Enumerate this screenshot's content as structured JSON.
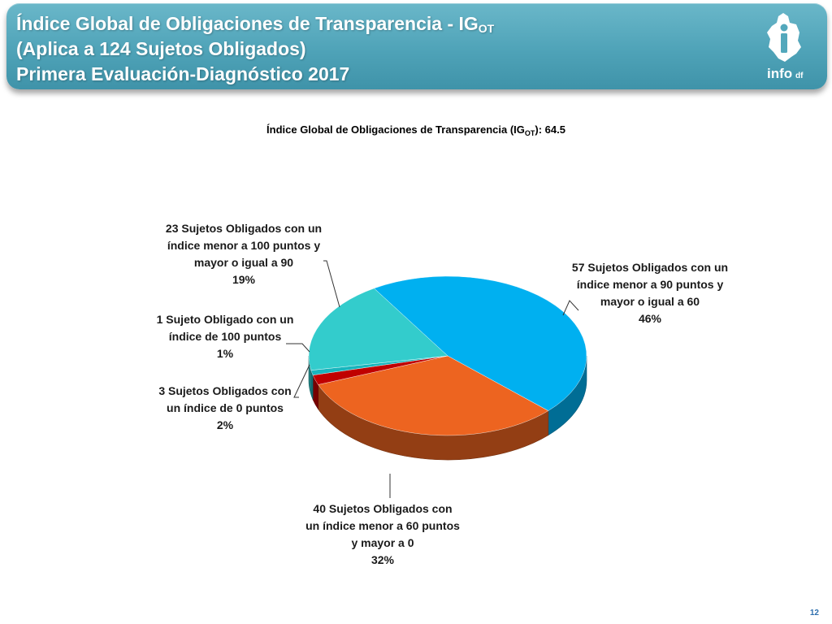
{
  "header": {
    "title_line1_main": "Índice Global de Obligaciones de Transparencia - IG",
    "title_line1_sub": "OT",
    "title_line2": "(Aplica a 124 Sujetos Obligados)",
    "title_line3": "Primera Evaluación-Diagnóstico 2017",
    "background_color": "#53a8bc"
  },
  "logo": {
    "icon": "info-df-logo-icon",
    "text_main": "info",
    "text_suffix": "df"
  },
  "chart_data": {
    "type": "pie",
    "title_main": "Índice Global de Obligaciones de Transparencia (IG",
    "title_sub": "OT",
    "title_end": "): 64.5",
    "slices": [
      {
        "label": "57 Sujetos Obligados con un índice menor a 90 puntos y mayor o igual a 60",
        "percent_label": "46%",
        "value": 46,
        "color": "#00b0f0"
      },
      {
        "label": "40 Sujetos Obligados con un índice menor a 60 puntos y mayor a 0",
        "percent_label": "32%",
        "value": 32,
        "color": "#ed6420"
      },
      {
        "label": "3 Sujetos Obligados con un índice de 0 puntos",
        "percent_label": "2%",
        "value": 2,
        "color": "#c00000"
      },
      {
        "label": "1 Sujeto Obligado con un índice de 100 puntos",
        "percent_label": "1%",
        "value": 1,
        "color": "#19b5bd"
      },
      {
        "label": "23 Sujetos Obligados con un índice menor a 100 puntos y mayor o igual a 90",
        "percent_label": "19%",
        "value": 19,
        "color": "#33cccc"
      }
    ]
  },
  "page_number": "12"
}
